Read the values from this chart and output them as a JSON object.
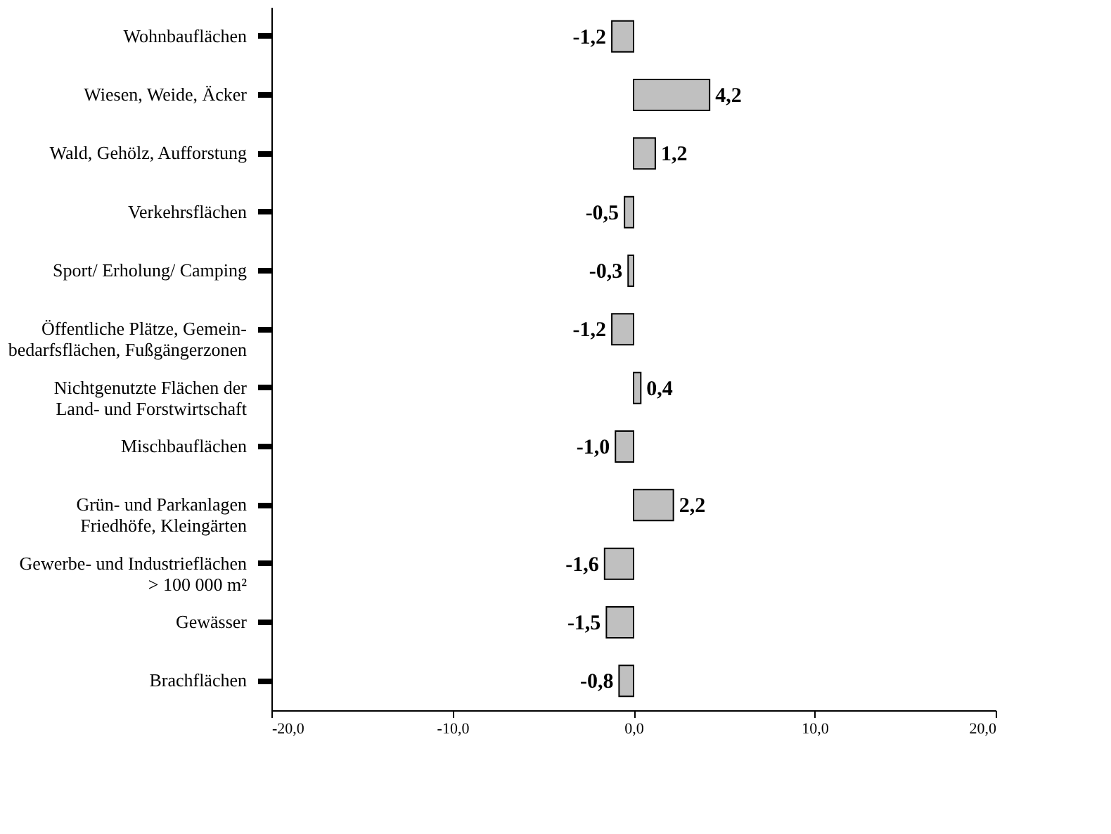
{
  "chart_data": {
    "type": "bar",
    "orientation": "horizontal",
    "categories": [
      "Wohnbauflächen",
      "Wiesen, Weide, Äcker",
      "Wald, Gehölz, Aufforstung",
      "Verkehrsflächen",
      "Sport/ Erholung/ Camping",
      "Öffentliche Plätze, Gemein-\nbedarfsflächen, Fußgängerzonen",
      "Nichtgenutzte Flächen der\nLand- und Forstwirtschaft",
      "Mischbauflächen",
      "Grün- und Parkanlagen\nFriedhöfe, Kleingärten",
      "Gewerbe- und Industrieflächen\n> 100 000 m²",
      "Gewässer",
      "Brachflächen"
    ],
    "values": [
      -1.2,
      4.2,
      1.2,
      -0.5,
      -0.3,
      -1.2,
      0.4,
      -1.0,
      2.2,
      -1.6,
      -1.5,
      -0.8
    ],
    "value_labels": [
      "-1,2",
      "4,2",
      "1,2",
      "-0,5",
      "-0,3",
      "-1,2",
      "0,4",
      "-1,0",
      "2,2",
      "-1,6",
      "-1,5",
      "-0,8"
    ],
    "color": "#c0c0c0",
    "xlim": [
      -20,
      20
    ],
    "xticks": [
      {
        "value": -20,
        "label": "-20,0"
      },
      {
        "value": -10,
        "label": "-10,0"
      },
      {
        "value": 0,
        "label": "0,0"
      },
      {
        "value": 10,
        "label": "10,0"
      },
      {
        "value": 20,
        "label": "20,0"
      }
    ],
    "grid": false
  }
}
